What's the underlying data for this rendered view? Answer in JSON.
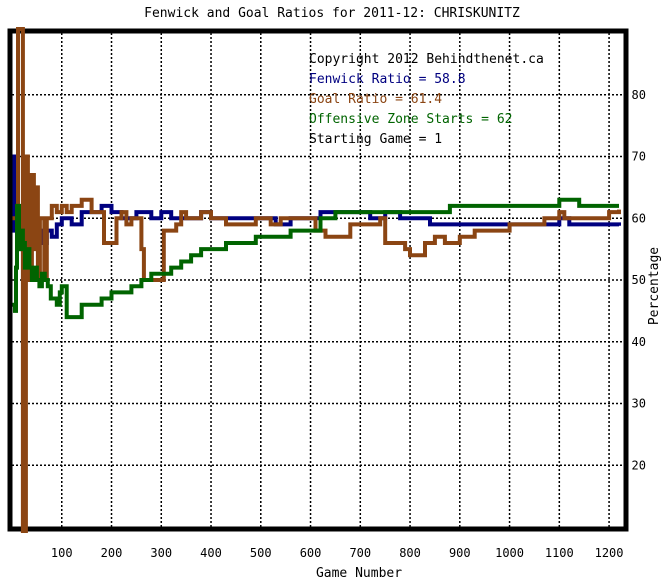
{
  "chart_data": {
    "type": "line",
    "title": "Fenwick and Goal Ratios for 2011-12: CHRISKUNITZ",
    "xlabel": "Game Number",
    "ylabel": "Percentage",
    "xlim": [
      0,
      1230
    ],
    "ylim": [
      10,
      90
    ],
    "x_ticks": [
      100,
      200,
      300,
      400,
      500,
      600,
      700,
      800,
      900,
      1000,
      1100,
      1200
    ],
    "y_ticks": [
      20,
      30,
      40,
      50,
      60,
      70,
      80
    ],
    "grid": true,
    "annotations": [
      {
        "text": "Copyright 2012 Behindthenet.ca",
        "color": "#000000"
      },
      {
        "text": "Fenwick Ratio = 58.8",
        "color": "#000080"
      },
      {
        "text": "Goal Ratio = 61.4",
        "color": "#8b4513"
      },
      {
        "text": "Offensive Zone Starts = 62",
        "color": "#006400"
      },
      {
        "text": "Starting Game = 1",
        "color": "#000000"
      }
    ],
    "series": [
      {
        "key": "fenwick",
        "color": "#000080",
        "points": [
          [
            1,
            58
          ],
          [
            5,
            70
          ],
          [
            10,
            61
          ],
          [
            15,
            60
          ],
          [
            20,
            55
          ],
          [
            25,
            62
          ],
          [
            30,
            58
          ],
          [
            35,
            64
          ],
          [
            40,
            60
          ],
          [
            45,
            62
          ],
          [
            50,
            59
          ],
          [
            55,
            58
          ],
          [
            60,
            56
          ],
          [
            70,
            58
          ],
          [
            80,
            57
          ],
          [
            90,
            59
          ],
          [
            100,
            60
          ],
          [
            120,
            59
          ],
          [
            140,
            61
          ],
          [
            160,
            61
          ],
          [
            180,
            62
          ],
          [
            200,
            61
          ],
          [
            220,
            60
          ],
          [
            250,
            61
          ],
          [
            280,
            60
          ],
          [
            300,
            61
          ],
          [
            320,
            60
          ],
          [
            350,
            60
          ],
          [
            380,
            61
          ],
          [
            400,
            60
          ],
          [
            430,
            60
          ],
          [
            460,
            60
          ],
          [
            500,
            60
          ],
          [
            530,
            59
          ],
          [
            560,
            60
          ],
          [
            600,
            60
          ],
          [
            620,
            61
          ],
          [
            640,
            61
          ],
          [
            660,
            61
          ],
          [
            680,
            61
          ],
          [
            700,
            61
          ],
          [
            720,
            60
          ],
          [
            750,
            61
          ],
          [
            780,
            60
          ],
          [
            800,
            60
          ],
          [
            840,
            59
          ],
          [
            880,
            59
          ],
          [
            920,
            59
          ],
          [
            960,
            59
          ],
          [
            1000,
            59
          ],
          [
            1040,
            59
          ],
          [
            1080,
            59
          ],
          [
            1100,
            60
          ],
          [
            1120,
            59
          ],
          [
            1150,
            59
          ],
          [
            1180,
            59
          ],
          [
            1200,
            59
          ],
          [
            1220,
            58.8
          ]
        ]
      },
      {
        "key": "goal",
        "color": "#8b4513",
        "points": [
          [
            1,
            60
          ],
          [
            10,
            55
          ],
          [
            12,
            95
          ],
          [
            18,
            95
          ],
          [
            22,
            5
          ],
          [
            25,
            5
          ],
          [
            28,
            70
          ],
          [
            32,
            60
          ],
          [
            36,
            50
          ],
          [
            40,
            67
          ],
          [
            44,
            55
          ],
          [
            48,
            65
          ],
          [
            52,
            50
          ],
          [
            56,
            60
          ],
          [
            60,
            60
          ],
          [
            65,
            50
          ],
          [
            70,
            60
          ],
          [
            80,
            62
          ],
          [
            90,
            61
          ],
          [
            100,
            62
          ],
          [
            110,
            61
          ],
          [
            120,
            62
          ],
          [
            140,
            63
          ],
          [
            160,
            61
          ],
          [
            180,
            61
          ],
          [
            185,
            56
          ],
          [
            200,
            56
          ],
          [
            210,
            60
          ],
          [
            220,
            61
          ],
          [
            230,
            59
          ],
          [
            240,
            60
          ],
          [
            250,
            60
          ],
          [
            260,
            55
          ],
          [
            265,
            50
          ],
          [
            280,
            50
          ],
          [
            300,
            50
          ],
          [
            305,
            58
          ],
          [
            320,
            58
          ],
          [
            330,
            59
          ],
          [
            340,
            61
          ],
          [
            350,
            60
          ],
          [
            370,
            60
          ],
          [
            380,
            61
          ],
          [
            400,
            60
          ],
          [
            430,
            59
          ],
          [
            460,
            59
          ],
          [
            490,
            60
          ],
          [
            500,
            60
          ],
          [
            520,
            59
          ],
          [
            540,
            60
          ],
          [
            560,
            60
          ],
          [
            580,
            60
          ],
          [
            600,
            60
          ],
          [
            610,
            58
          ],
          [
            630,
            57
          ],
          [
            660,
            57
          ],
          [
            680,
            59
          ],
          [
            700,
            59
          ],
          [
            720,
            59
          ],
          [
            740,
            60
          ],
          [
            750,
            56
          ],
          [
            770,
            56
          ],
          [
            790,
            55
          ],
          [
            800,
            54
          ],
          [
            820,
            54
          ],
          [
            830,
            56
          ],
          [
            840,
            56
          ],
          [
            850,
            57
          ],
          [
            870,
            56
          ],
          [
            900,
            57
          ],
          [
            930,
            58
          ],
          [
            960,
            58
          ],
          [
            1000,
            59
          ],
          [
            1040,
            59
          ],
          [
            1060,
            59
          ],
          [
            1070,
            60
          ],
          [
            1080,
            60
          ],
          [
            1100,
            61
          ],
          [
            1110,
            60
          ],
          [
            1140,
            60
          ],
          [
            1170,
            60
          ],
          [
            1190,
            60
          ],
          [
            1200,
            61
          ],
          [
            1220,
            61.4
          ]
        ]
      },
      {
        "key": "ozs",
        "color": "#006400",
        "points": [
          [
            1,
            46
          ],
          [
            6,
            45
          ],
          [
            8,
            52
          ],
          [
            10,
            62
          ],
          [
            14,
            55
          ],
          [
            18,
            58
          ],
          [
            22,
            56
          ],
          [
            26,
            52
          ],
          [
            30,
            55
          ],
          [
            35,
            52
          ],
          [
            40,
            50
          ],
          [
            45,
            52
          ],
          [
            50,
            50
          ],
          [
            55,
            49
          ],
          [
            60,
            51
          ],
          [
            66,
            50
          ],
          [
            72,
            49
          ],
          [
            78,
            47
          ],
          [
            84,
            47
          ],
          [
            90,
            46
          ],
          [
            96,
            48
          ],
          [
            100,
            49
          ],
          [
            110,
            44
          ],
          [
            120,
            44
          ],
          [
            130,
            44
          ],
          [
            140,
            46
          ],
          [
            160,
            46
          ],
          [
            180,
            47
          ],
          [
            200,
            48
          ],
          [
            220,
            48
          ],
          [
            240,
            49
          ],
          [
            260,
            50
          ],
          [
            280,
            51
          ],
          [
            300,
            51
          ],
          [
            320,
            52
          ],
          [
            340,
            53
          ],
          [
            360,
            54
          ],
          [
            380,
            55
          ],
          [
            400,
            55
          ],
          [
            430,
            56
          ],
          [
            460,
            56
          ],
          [
            490,
            57
          ],
          [
            500,
            57
          ],
          [
            530,
            57
          ],
          [
            560,
            58
          ],
          [
            600,
            58
          ],
          [
            620,
            60
          ],
          [
            650,
            61
          ],
          [
            680,
            61
          ],
          [
            700,
            61
          ],
          [
            730,
            61
          ],
          [
            760,
            61
          ],
          [
            800,
            61
          ],
          [
            840,
            61
          ],
          [
            880,
            62
          ],
          [
            920,
            62
          ],
          [
            960,
            62
          ],
          [
            1000,
            62
          ],
          [
            1040,
            62
          ],
          [
            1080,
            62
          ],
          [
            1100,
            63
          ],
          [
            1140,
            62
          ],
          [
            1180,
            62
          ],
          [
            1200,
            62
          ],
          [
            1220,
            62
          ]
        ]
      }
    ]
  }
}
